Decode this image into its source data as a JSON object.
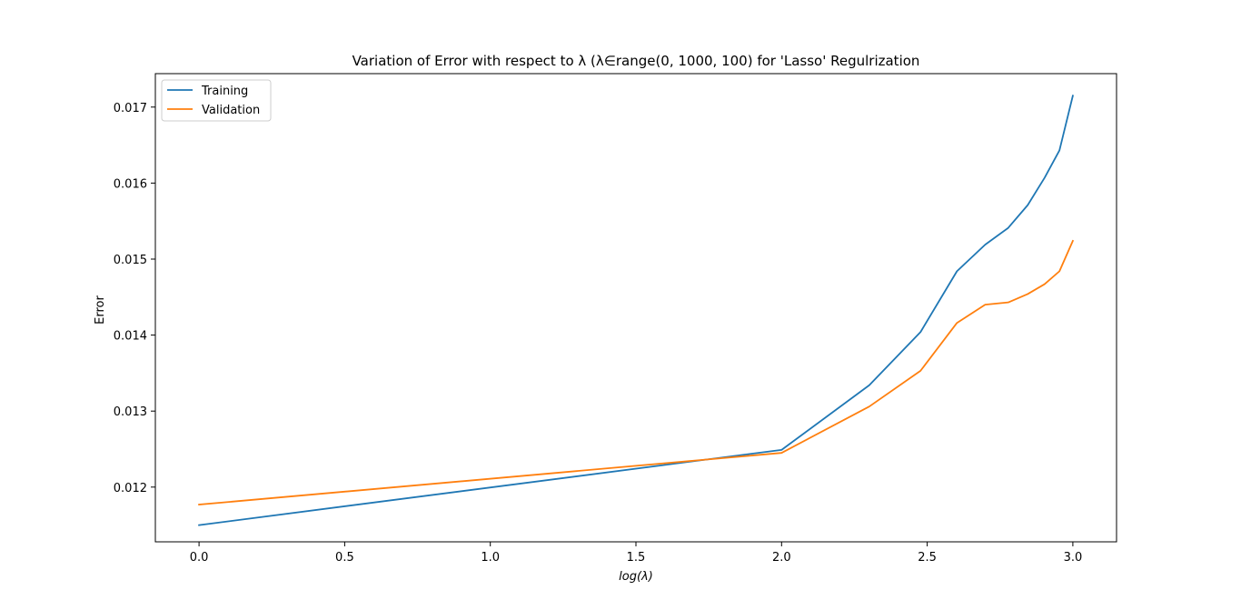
{
  "chart_data": {
    "type": "line",
    "title": "Variation of Error with respect to λ (λ∈range(0, 1000, 100) for 'Lasso' Regulrization",
    "xlabel": "log(λ)",
    "ylabel": "Error",
    "xlim": [
      -0.15,
      3.15
    ],
    "ylim": [
      0.01128,
      0.01744
    ],
    "xticks": [
      0.0,
      0.5,
      1.0,
      1.5,
      2.0,
      2.5,
      3.0
    ],
    "xtick_labels": [
      "0.0",
      "0.5",
      "1.0",
      "1.5",
      "2.0",
      "2.5",
      "3.0"
    ],
    "yticks": [
      0.012,
      0.013,
      0.014,
      0.015,
      0.016,
      0.017
    ],
    "ytick_labels": [
      "0.012",
      "0.013",
      "0.014",
      "0.015",
      "0.016",
      "0.017"
    ],
    "grid": false,
    "legend_position": "top-left",
    "x": [
      0.0,
      2.0,
      2.301,
      2.477,
      2.602,
      2.699,
      2.778,
      2.845,
      2.903,
      2.954,
      3.0
    ],
    "series": [
      {
        "name": "Training",
        "color": "#1f77b4",
        "values": [
          0.0115,
          0.01249,
          0.01334,
          0.01404,
          0.01484,
          0.01519,
          0.01541,
          0.01571,
          0.01607,
          0.01643,
          0.01715
        ]
      },
      {
        "name": "Validation",
        "color": "#ff7f0e",
        "values": [
          0.01177,
          0.01245,
          0.01306,
          0.01353,
          0.01416,
          0.0144,
          0.01443,
          0.01454,
          0.01467,
          0.01484,
          0.01524
        ]
      }
    ]
  }
}
